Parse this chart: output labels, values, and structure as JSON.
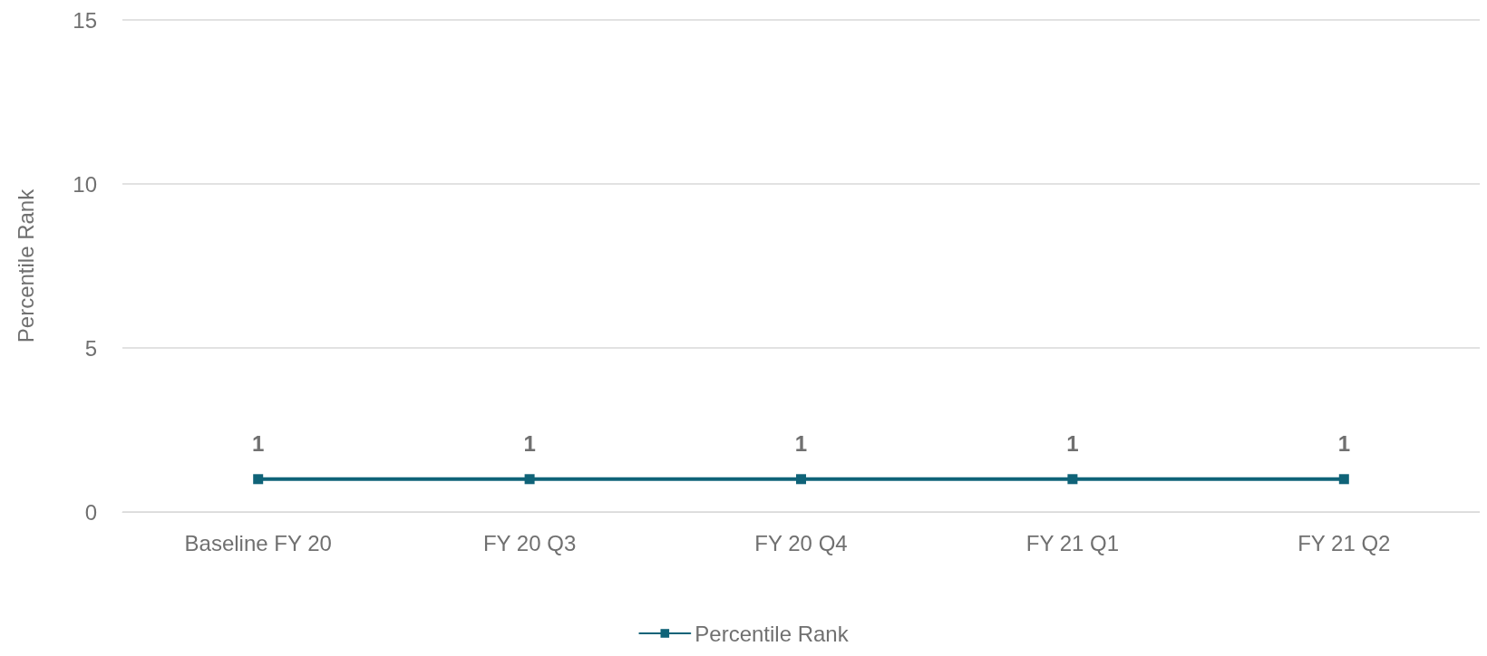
{
  "chart_data": {
    "type": "line",
    "ylabel": "Percentile Rank",
    "categories": [
      "Baseline FY 20",
      "FY 20 Q3",
      "FY 20 Q4",
      "FY 21 Q1",
      "FY 21 Q2"
    ],
    "series": [
      {
        "name": "Percentile Rank",
        "color": "#0f6378",
        "values": [
          1,
          1,
          1,
          1,
          1
        ]
      }
    ],
    "ylim": [
      0,
      15
    ],
    "yticks": [
      0,
      5,
      10,
      15
    ],
    "grid": "y",
    "legend": "bottom",
    "marker": "square",
    "line_style": "solid",
    "data_labels": true
  }
}
